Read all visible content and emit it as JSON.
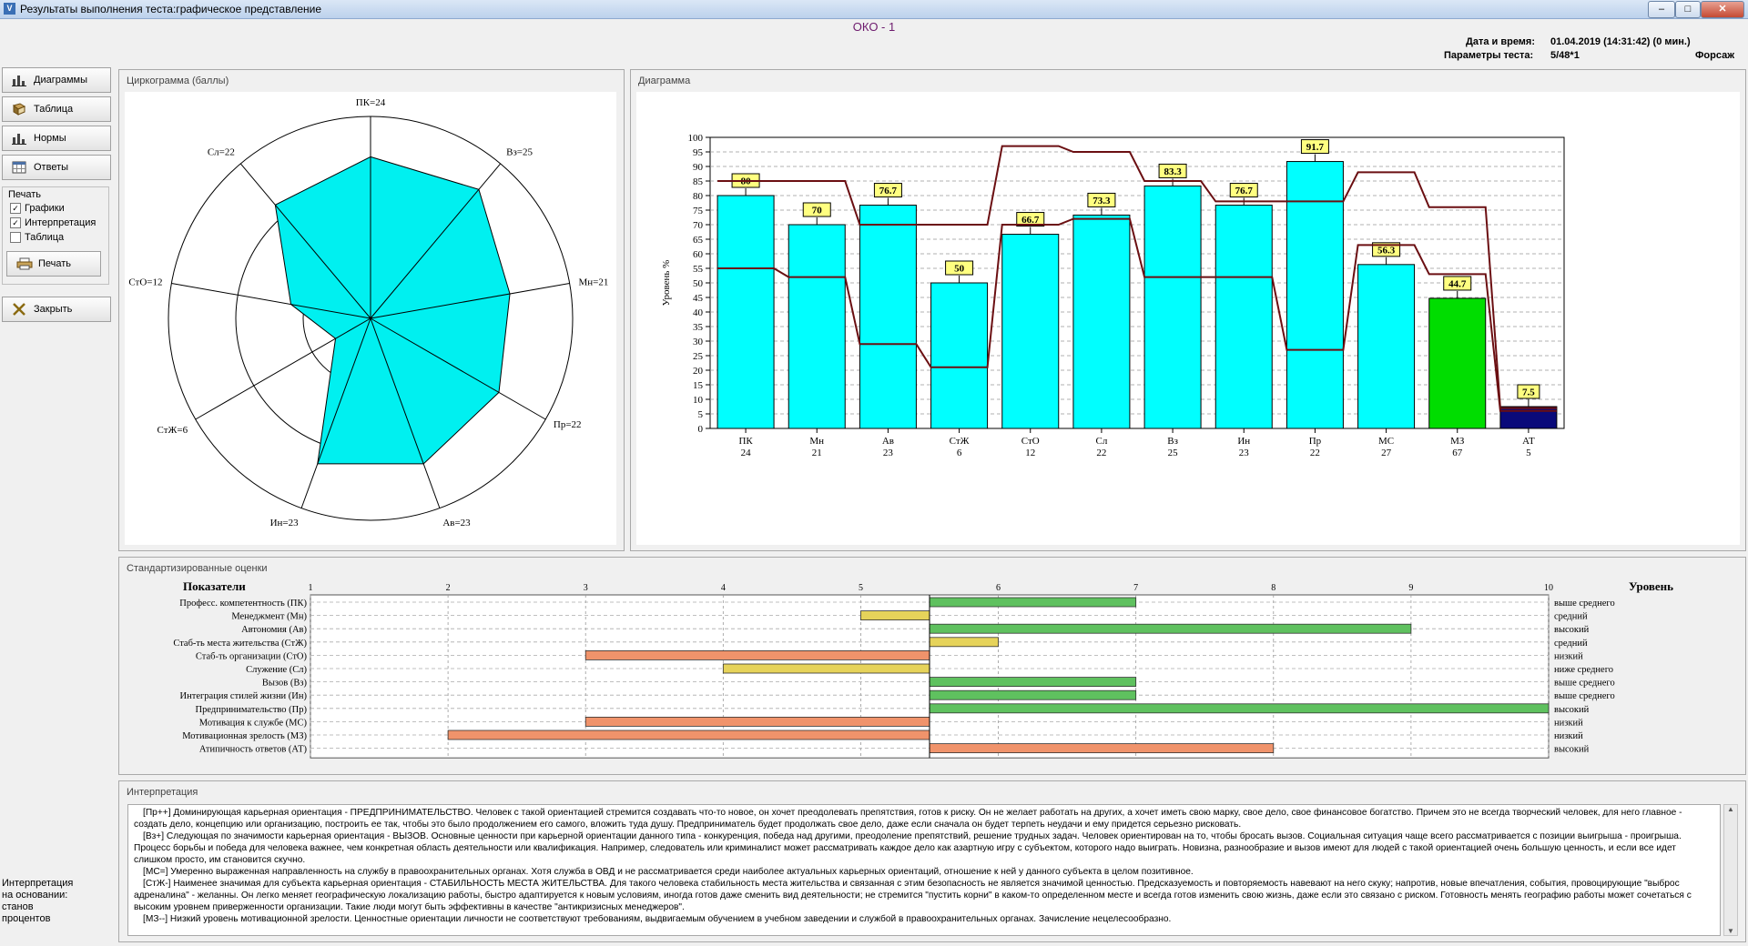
{
  "window": {
    "title": "Результаты выполнения теста:графическое представление",
    "min": "–",
    "max": "□",
    "close": "✕"
  },
  "header": {
    "title": "ОКО - 1",
    "datetime_label": "Дата и время:",
    "datetime_value": "01.04.2019 (14:31:42) (0 мин.)",
    "params_label": "Параметры теста:",
    "params_value": "5/48*1",
    "user": "Форсаж"
  },
  "sidebar": {
    "buttons": [
      {
        "label": "Диаграммы",
        "icon": "bar-chart-icon"
      },
      {
        "label": "Таблица",
        "icon": "book-icon"
      },
      {
        "label": "Нормы",
        "icon": "bar-chart-icon"
      },
      {
        "label": "Ответы",
        "icon": "calendar-grid-icon"
      }
    ],
    "print_group": "Печать",
    "checkboxes": [
      {
        "label": "Графики",
        "checked": true
      },
      {
        "label": "Интерпретация",
        "checked": true
      },
      {
        "label": "Таблица",
        "checked": false
      }
    ],
    "print_button": "Печать",
    "close_button": "Закрыть",
    "interp_lines": [
      "Интерпретация",
      "на основании:",
      "станов",
      "процентов"
    ]
  },
  "radar": {
    "title": "Циркограмма (баллы)",
    "max": 30,
    "axes": [
      {
        "label": "ПК=24",
        "value": 24
      },
      {
        "label": "Вз=25",
        "value": 25
      },
      {
        "label": "Мн=21",
        "value": 21
      },
      {
        "label": "Пр=22",
        "value": 22
      },
      {
        "label": "Ав=23",
        "value": 23
      },
      {
        "label": "Ин=23",
        "value": 23
      },
      {
        "label": "СтЖ=6",
        "value": 6
      },
      {
        "label": "СтО=12",
        "value": 12
      },
      {
        "label": "Сл=22",
        "value": 22
      }
    ]
  },
  "chart_data": [
    {
      "type": "bar",
      "title": "Диаграмма",
      "ylabel": "Уровень %",
      "ylim": [
        0,
        100
      ],
      "yticks": [
        0,
        5,
        10,
        15,
        20,
        25,
        30,
        35,
        40,
        45,
        50,
        55,
        60,
        65,
        70,
        75,
        80,
        85,
        90,
        95,
        100
      ],
      "categories": [
        "ПК",
        "Мн",
        "Ав",
        "СтЖ",
        "СтО",
        "Сл",
        "Вз",
        "Ин",
        "Пр",
        "МС",
        "МЗ",
        "АТ"
      ],
      "scores": [
        "24",
        "21",
        "23",
        "6",
        "12",
        "22",
        "25",
        "23",
        "22",
        "27",
        "67",
        "5"
      ],
      "values": [
        80,
        70,
        76.7,
        50,
        66.7,
        73.3,
        83.3,
        76.7,
        91.7,
        56.3,
        44.7,
        7.5
      ],
      "value_labels": [
        "80",
        "70",
        "76.7",
        "50",
        "66.7",
        "73.3",
        "83.3",
        "76.7",
        "91.7",
        "56.3",
        "44.7",
        "7.5"
      ],
      "bar_colors": [
        "#00ffff",
        "#00ffff",
        "#00ffff",
        "#00ffff",
        "#00ffff",
        "#00ffff",
        "#00ffff",
        "#00ffff",
        "#00ffff",
        "#00ffff",
        "#00dd00",
        "#0a0a7a"
      ],
      "norm_upper": [
        85,
        85,
        70,
        70,
        97,
        95,
        85,
        78,
        78,
        88,
        76,
        7
      ],
      "norm_lower": [
        55,
        52,
        29,
        21,
        70,
        72,
        52,
        52,
        27,
        63,
        53,
        6
      ],
      "norm_color": "#6b0f12"
    },
    {
      "type": "bar",
      "title": "Стандартизированные оценки",
      "xlim": [
        1,
        10
      ],
      "baseline": 5.5,
      "xticks": [
        "1",
        "2",
        "3",
        "4",
        "5",
        "6",
        "7",
        "8",
        "9",
        "10"
      ],
      "header_left": "Показатели",
      "header_right": "Уровень",
      "rows": [
        {
          "label": "Професс. компетентность (ПК)",
          "value": 7,
          "level": "выше среднего",
          "color": "#5fc15f"
        },
        {
          "label": "Менеджмент (Мн)",
          "value": 5,
          "level": "средний",
          "color": "#e6d35a"
        },
        {
          "label": "Автономия (Ав)",
          "value": 9,
          "level": "высокий",
          "color": "#5fc15f"
        },
        {
          "label": "Стаб-ть места жительства (СтЖ)",
          "value": 6,
          "level": "средний",
          "color": "#e6d35a"
        },
        {
          "label": "Стаб-ть организации (СтО)",
          "value": 3,
          "level": "низкий",
          "color": "#f0936b"
        },
        {
          "label": "Служение (Сл)",
          "value": 4,
          "level": "ниже среднего",
          "color": "#e6d35a"
        },
        {
          "label": "Вызов (Вз)",
          "value": 7,
          "level": "выше среднего",
          "color": "#5fc15f"
        },
        {
          "label": "Интеграция стилей жизни (Ин)",
          "value": 7,
          "level": "выше среднего",
          "color": "#5fc15f"
        },
        {
          "label": "Предпринимательство (Пр)",
          "value": 10,
          "level": "высокий",
          "color": "#5fc15f"
        },
        {
          "label": "Мотивация к службе (МС)",
          "value": 3,
          "level": "низкий",
          "color": "#f0936b"
        },
        {
          "label": "Мотивационная зрелость (МЗ)",
          "value": 2,
          "level": "низкий",
          "color": "#f0936b"
        },
        {
          "label": "Атипичность ответов (АТ)",
          "value": 8,
          "level": "высокий",
          "color": "#f0936b"
        }
      ]
    }
  ],
  "interpretation": {
    "title": "Интерпретация",
    "paragraphs": [
      "[Пр++]  Доминирующая карьерная ориентация - ПРЕДПРИНИМАТЕЛЬСТВО. Человек с такой ориентацией стремится создавать что-то новое, он хочет преодолевать препятствия, готов к риску. Он не желает работать на других, а хочет иметь свою марку, свое дело, свое финансовое богатство. Причем это не всегда творческий человек, для него главное - создать дело, концепцию или организацию, построить ее так, чтобы это было продолжением его самого, вложить туда душу. Предприниматель будет продолжать свое дело, даже если сначала он будет терпеть неудачи и ему придется серьезно рисковать.",
      "[Вз+]  Следующая по значимости карьерная ориентация - ВЫЗОВ. Основные ценности при карьерной ориентации данного типа - конкуренция, победа над другими, преодоление препятствий, решение трудных задач. Человек ориентирован на то, чтобы бросать вызов. Социальная ситуация чаще всего рассматривается с позиции выигрыша - проигрыша. Процесс борьбы и победа для человека важнее, чем конкретная область деятельности или квалификация. Например, следователь или криминалист может рассматривать каждое дело как азартную игру с субъектом, которого надо выиграть. Новизна, разнообразие и вызов имеют для людей с такой ориентацией очень большую ценность, и если все идет слишком просто, им становится скучно.",
      "[МС=]  Умеренно выраженная направленность на службу в правоохранительных органах. Хотя служба в ОВД и не рассматривается среди наиболее актуальных карьерных ориентаций, отношение к ней у данного субъекта в целом позитивное.",
      "[СтЖ-]  Наименее значимая для субъекта карьерная ориентация - СТАБИЛЬНОСТЬ МЕСТА ЖИТЕЛЬСТВА. Для такого человека стабильность места жительства и связанная с этим безопасность не является значимой ценностью. Предсказуемость и повторяемость навевают на него скуку; напротив, новые впечатления, события, провоцирующие \"выброс адреналина\" - желанны. Он легко меняет географическую локализацию работы, быстро адаптируется к новым условиям, иногда готов даже сменить вид деятельности; не стремится \"пустить корни\" в каком-то определенном месте и всегда готов изменить свою жизнь, даже если это связано с риском. Готовность менять географию работы может сочетаться с высоким уровнем приверженности организации. Такие люди могут быть эффективны в качестве \"антикризисных менеджеров\".",
      "[МЗ--]  Низкий уровень мотивационной зрелости. Ценностные ориентации личности не соответствуют требованиям, выдвигаемым обучением в учебном заведении и службой в правоохранительных органах. Зачисление нецелесообразно."
    ]
  }
}
